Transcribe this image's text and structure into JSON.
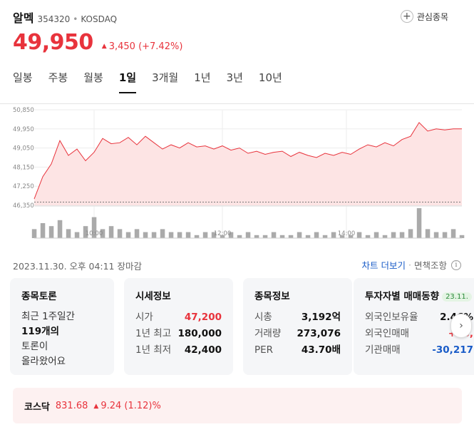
{
  "stock": {
    "name": "알멕",
    "code": "354320",
    "market": "KOSDAQ",
    "price": "49,950",
    "change": "3,450",
    "change_pct": "(+7.42%)",
    "watch_label": "관심종목"
  },
  "tabs": [
    {
      "label": "일봉",
      "active": false
    },
    {
      "label": "주봉",
      "active": false
    },
    {
      "label": "월봉",
      "active": false
    },
    {
      "label": "1일",
      "active": true
    },
    {
      "label": "3개월",
      "active": false
    },
    {
      "label": "1년",
      "active": false
    },
    {
      "label": "3년",
      "active": false
    },
    {
      "label": "10년",
      "active": false
    }
  ],
  "chart_data": {
    "type": "area",
    "y_ticks": [
      "50,850",
      "49,950",
      "49,050",
      "48,150",
      "47,250",
      "46,350"
    ],
    "ylim": [
      46350,
      50850
    ],
    "x_ticks": [
      "10:00",
      "12:00",
      "14:00"
    ],
    "x": [
      0,
      2,
      4,
      6,
      8,
      10,
      12,
      14,
      16,
      18,
      20,
      22,
      24,
      26,
      28,
      30,
      32,
      34,
      36,
      38,
      40,
      42,
      44,
      46,
      48,
      50,
      52,
      54,
      56,
      58,
      60,
      62,
      64,
      66,
      68,
      70,
      72,
      74,
      76,
      78,
      80,
      82,
      84,
      86,
      88,
      90,
      92,
      94,
      96,
      98,
      100
    ],
    "values": [
      46650,
      47700,
      48300,
      49400,
      48700,
      49000,
      48450,
      48850,
      49500,
      49250,
      49300,
      49550,
      49200,
      49600,
      49300,
      49000,
      49200,
      49050,
      49300,
      49100,
      49150,
      49000,
      49150,
      48950,
      49050,
      48800,
      48900,
      48750,
      48850,
      48900,
      48650,
      48850,
      48700,
      48600,
      48800,
      48700,
      48850,
      48750,
      49000,
      49200,
      49100,
      49300,
      49150,
      49450,
      49600,
      50250,
      49850,
      49950,
      49900,
      49950,
      49950
    ],
    "volume": [
      3,
      5,
      4,
      6,
      3,
      2,
      4,
      7,
      3,
      4,
      3,
      2,
      3,
      2,
      2,
      3,
      2,
      2,
      2,
      1,
      2,
      2,
      1,
      2,
      1,
      2,
      1,
      1,
      2,
      1,
      1,
      2,
      1,
      2,
      1,
      2,
      1,
      1,
      2,
      1,
      2,
      1,
      2,
      2,
      3,
      10,
      3,
      2,
      2,
      3,
      1
    ],
    "base_price": 46500,
    "color": "#e8333c",
    "fill": "#fde4e4"
  },
  "timestamp": "2023.11.30. 오후 04:11 장마감",
  "links": {
    "chart_more": "차트 더보기",
    "disclaimer": "면책조항"
  },
  "cards": {
    "discussion": {
      "title": "종목토론",
      "line1": "최근 1주일간",
      "count": "119개의",
      "line3": "토론이",
      "line4": "올라왔어요"
    },
    "quote": {
      "title": "시세정보",
      "open_label": "시가",
      "open_value": "47,200",
      "high_label": "1년 최고",
      "high_value": "180,000",
      "low_label": "1년 최저",
      "low_value": "42,400"
    },
    "info": {
      "title": "종목정보",
      "cap_label": "시총",
      "cap_value": "3,192억",
      "vol_label": "거래량",
      "vol_value": "273,076",
      "per_label": "PER",
      "per_value": "43.70배"
    },
    "investor": {
      "title": "투자자별 매매동향",
      "date_badge": "23.11.",
      "foreign_ratio_label": "외국인보유율",
      "foreign_ratio_value": "2.46%",
      "foreign_trade_label": "외국인매매",
      "foreign_trade_value": "+16,",
      "inst_trade_label": "기관매매",
      "inst_trade_value": "-30,217"
    }
  },
  "index": {
    "name": "코스닥",
    "value": "831.68",
    "change": "9.24 (1.12)%"
  }
}
